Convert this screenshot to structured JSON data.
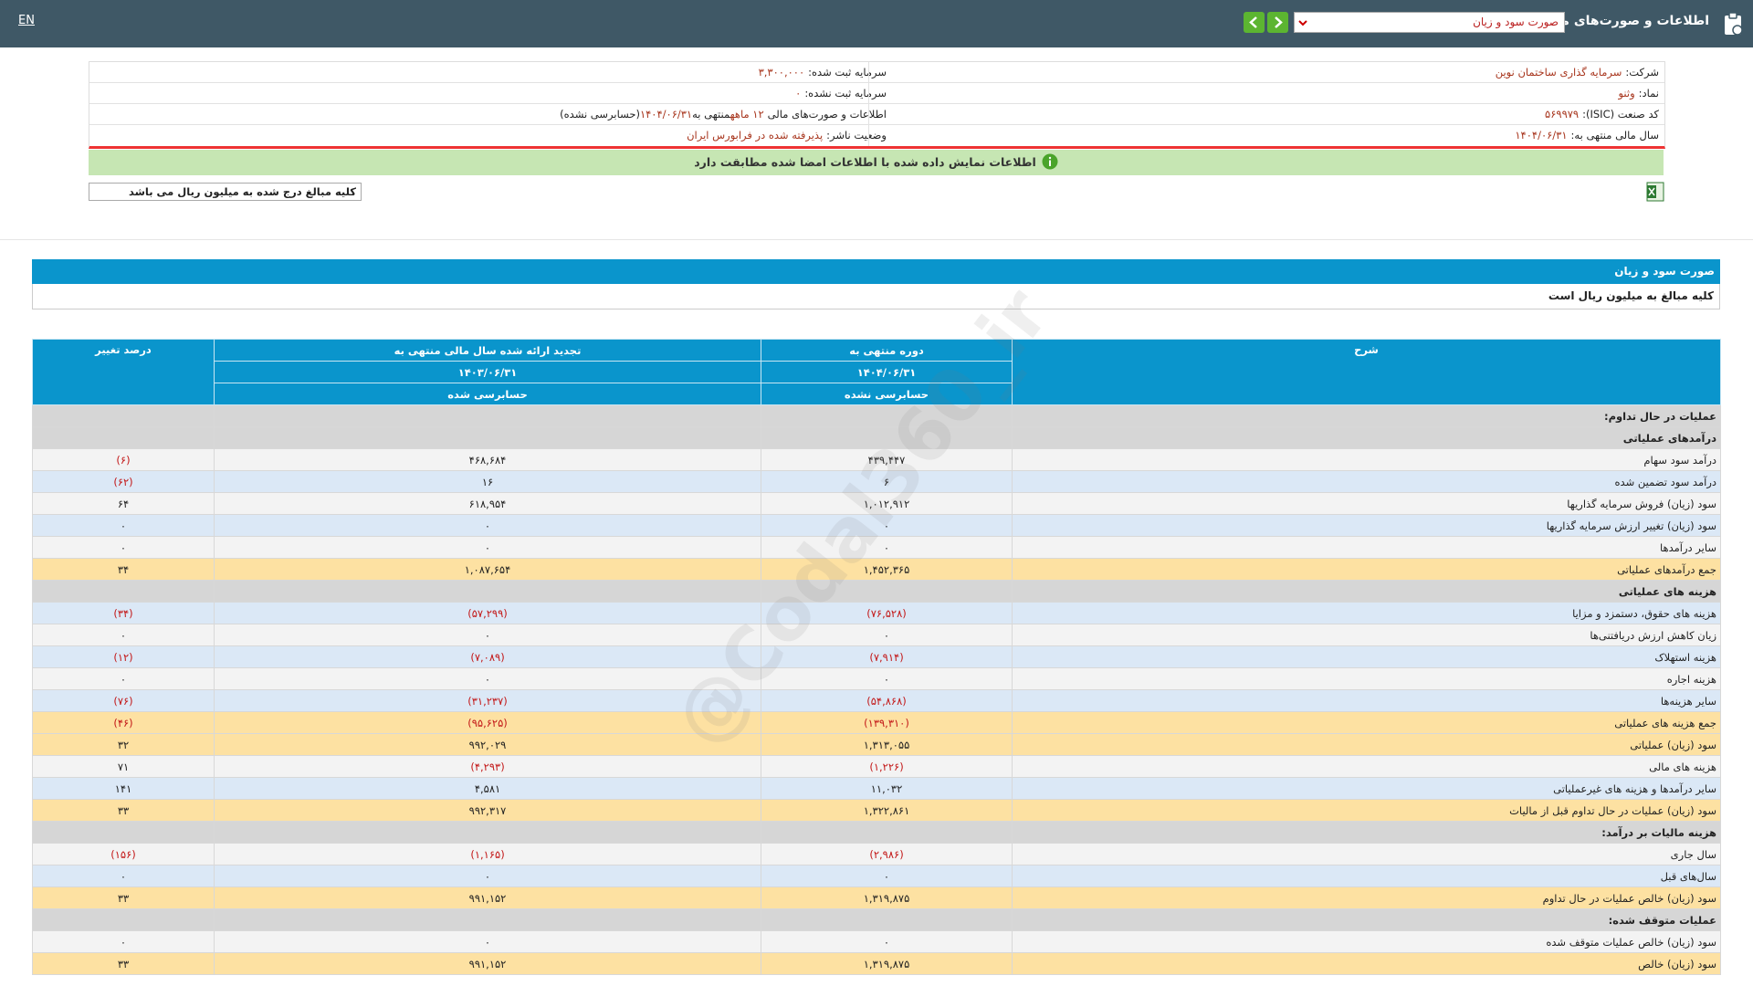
{
  "header": {
    "title": "اطلاعات و صورت‌های مالی",
    "report": "صورت سود و زیان",
    "language": "EN"
  },
  "info": {
    "right": [
      {
        "label": "شرکت:",
        "value": "سرمایه گذاری ساختمان نوین"
      },
      {
        "label": "نماد:",
        "value": "وثنو"
      },
      {
        "label": "کد صنعت (ISIC):",
        "value": "۵۶۹۹۷۹"
      },
      {
        "label": "سال مالی منتهی به:",
        "value": "۱۴۰۴/۰۶/۳۱"
      }
    ],
    "left": [
      {
        "label": "سرمایه ثبت شده:",
        "value": "۳,۳۰۰,۰۰۰"
      },
      {
        "label": "سرمایه ثبت نشده:",
        "value": "۰"
      },
      {
        "label": "اطلاعات و صورت‌های مالی",
        "value": "۱۲ ماهه",
        "middle": "منتهی به",
        "date": "۱۴۰۴/۰۶/۳۱",
        "note": "(حسابرسی نشده)"
      },
      {
        "label": "وضعیت ناشر:",
        "value": "پذیرفته شده در فرابورس ایران"
      }
    ]
  },
  "notice": "اطلاعات نمایش داده شده با اطلاعات امضا شده مطابقت دارد",
  "units_note": "کلیه مبالغ درج شده به میلیون ریال می باشد",
  "section": {
    "title": "صورت سود و زیان",
    "note": "کلیه مبالغ به میلیون ریال است"
  },
  "watermark": "@Codal360_ir",
  "table": {
    "header": {
      "description": "شرح",
      "period": "دوره منتهی به",
      "period_date": "۱۴۰۴/۰۶/۳۱",
      "period_status": "حسابرسی نشده",
      "restated": "تجدید ارائه شده سال مالی منتهی به",
      "restated_date": "۱۴۰۳/۰۶/۳۱",
      "restated_status": "حسابرسی شده",
      "change": "درصد تغییر"
    },
    "rows": [
      {
        "kind": "section",
        "label": "عملیات در حال تداوم:"
      },
      {
        "kind": "section",
        "label": "درآمدهای عملیاتی"
      },
      {
        "kind": "item",
        "label": "درآمد سود سهام",
        "cells": [
          "۴۳۹,۴۴۷",
          "۴۶۸,۶۸۴",
          "(۶)"
        ]
      },
      {
        "kind": "item",
        "label": "درآمد سود تضمین شده",
        "cells": [
          "۶",
          "۱۶",
          "(۶۲)"
        ]
      },
      {
        "kind": "item",
        "label": "سود (زیان) فروش سرمایه گذاریها",
        "cells": [
          "۱,۰۱۲,۹۱۲",
          "۶۱۸,۹۵۴",
          "۶۴"
        ]
      },
      {
        "kind": "item",
        "label": "سود (زیان) تغییر ارزش سرمایه گذاریها",
        "cells": [
          "۰",
          "۰",
          "۰"
        ]
      },
      {
        "kind": "item",
        "label": "سایر درآمدها",
        "cells": [
          "۰",
          "۰",
          "۰"
        ]
      },
      {
        "kind": "total",
        "label": "جمع درآمدهای عملیاتی",
        "cells": [
          "۱,۴۵۲,۳۶۵",
          "۱,۰۸۷,۶۵۴",
          "۳۴"
        ]
      },
      {
        "kind": "section",
        "label": "هزینه های عملیاتی"
      },
      {
        "kind": "item",
        "label": "هزینه های حقوق، دستمزد و مزایا",
        "cells": [
          "(۷۶,۵۲۸)",
          "(۵۷,۲۹۹)",
          "(۳۴)"
        ]
      },
      {
        "kind": "item",
        "label": "زیان کاهش ارزش دریافتنی‌ها",
        "cells": [
          "۰",
          "۰",
          "۰"
        ]
      },
      {
        "kind": "item",
        "label": "هزینه استهلاک",
        "cells": [
          "(۷,۹۱۴)",
          "(۷,۰۸۹)",
          "(۱۲)"
        ]
      },
      {
        "kind": "item",
        "label": "هزینه اجاره",
        "cells": [
          "۰",
          "۰",
          "۰"
        ]
      },
      {
        "kind": "item",
        "label": "سایر هزینه‌ها",
        "cells": [
          "(۵۴,۸۶۸)",
          "(۳۱,۲۳۷)",
          "(۷۶)"
        ]
      },
      {
        "kind": "total",
        "label": "جمع هزینه های عملیاتی",
        "cells": [
          "(۱۳۹,۳۱۰)",
          "(۹۵,۶۲۵)",
          "(۴۶)"
        ]
      },
      {
        "kind": "total",
        "label": "سود (زیان) عملیاتی",
        "cells": [
          "۱,۳۱۳,۰۵۵",
          "۹۹۲,۰۲۹",
          "۳۲"
        ]
      },
      {
        "kind": "item",
        "label": "هزینه های مالی",
        "cells": [
          "(۱,۲۲۶)",
          "(۴,۲۹۳)",
          "۷۱"
        ]
      },
      {
        "kind": "item",
        "label": "سایر درآمدها و هزینه های غیرعملیاتی",
        "cells": [
          "۱۱,۰۳۲",
          "۴,۵۸۱",
          "۱۴۱"
        ]
      },
      {
        "kind": "total",
        "label": "سود (زیان) عملیات در حال تداوم قبل از مالیات",
        "cells": [
          "۱,۳۲۲,۸۶۱",
          "۹۹۲,۳۱۷",
          "۳۳"
        ]
      },
      {
        "kind": "section",
        "label": "هزینه مالیات بر درآمد:"
      },
      {
        "kind": "item",
        "label": "سال جاری",
        "cells": [
          "(۲,۹۸۶)",
          "(۱,۱۶۵)",
          "(۱۵۶)"
        ]
      },
      {
        "kind": "item",
        "label": "سال‌های قبل",
        "cells": [
          "۰",
          "۰",
          "۰"
        ]
      },
      {
        "kind": "total",
        "label": "سود (زیان) خالص عملیات در حال تداوم",
        "cells": [
          "۱,۳۱۹,۸۷۵",
          "۹۹۱,۱۵۲",
          "۳۳"
        ]
      },
      {
        "kind": "section",
        "label": "عملیات متوقف شده:"
      },
      {
        "kind": "item",
        "label": "سود (زیان) خالص عملیات متوقف شده",
        "cells": [
          "۰",
          "۰",
          "۰"
        ]
      },
      {
        "kind": "total",
        "label": "سود (زیان) خالص",
        "cells": [
          "۱,۳۱۹,۸۷۵",
          "۹۹۱,۱۵۲",
          "۳۳"
        ]
      }
    ]
  }
}
